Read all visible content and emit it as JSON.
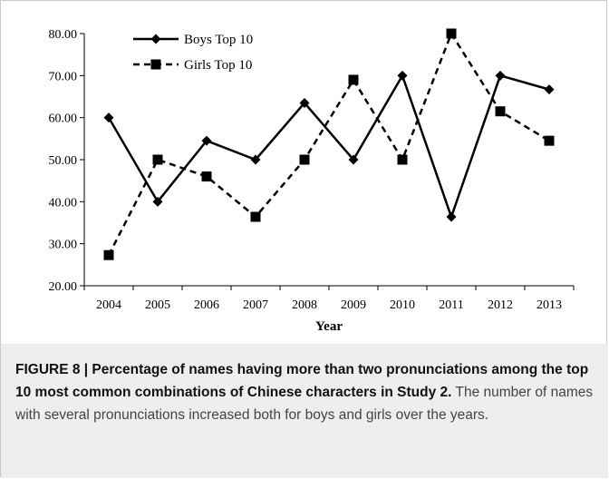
{
  "chart_data": {
    "type": "line",
    "categories": [
      "2004",
      "2005",
      "2006",
      "2007",
      "2008",
      "2009",
      "2010",
      "2011",
      "2012",
      "2013"
    ],
    "series": [
      {
        "name": "Boys Top 10",
        "values": [
          60,
          40,
          54.5,
          50,
          63.5,
          50,
          70,
          36.4,
          70,
          66.7
        ],
        "line_style": "solid",
        "marker": "diamond"
      },
      {
        "name": "Girls Top 10",
        "values": [
          27.3,
          50,
          46,
          36.4,
          50,
          69,
          50,
          80,
          61.5,
          54.5
        ],
        "line_style": "dashed",
        "marker": "square"
      }
    ],
    "ylim": [
      20,
      80
    ],
    "yticks": [
      "20.00",
      "30.00",
      "40.00",
      "50.00",
      "60.00",
      "70.00",
      "80.00"
    ],
    "xlabel": "Year",
    "ylabel": "",
    "grid": false,
    "legend_position": "top-left"
  },
  "caption": {
    "lead": "FIGURE 8 | Percentage of names having more than two pronunciations among the top 10 most common combinations of Chinese characters in Study 2.",
    "body": " The number of names with several pronunciations increased both for boys and girls over the years."
  },
  "colors": {
    "caption_background": "#eeeeee",
    "line": "#000000"
  }
}
